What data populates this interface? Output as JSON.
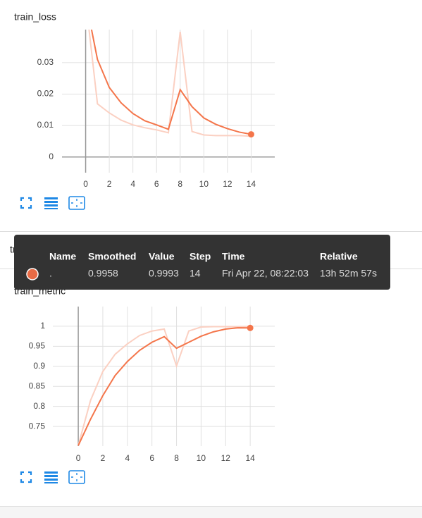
{
  "section_header": "train_metric",
  "chart_data": [
    {
      "type": "line",
      "title": "train_loss",
      "x": [
        0,
        1,
        2,
        3,
        4,
        5,
        6,
        7,
        8,
        9,
        10,
        11,
        12,
        13,
        14
      ],
      "series": [
        {
          "color": "#fbd0c2",
          "values": [
            0.05,
            0.0169,
            0.014,
            0.0117,
            0.0102,
            0.0093,
            0.0086,
            0.0077,
            0.0398,
            0.0081,
            0.007,
            0.0068,
            0.0068,
            0.0068,
            0.0066
          ]
        },
        {
          "color": "#f4754a",
          "values": [
            0.05,
            0.031,
            0.0221,
            0.0172,
            0.0138,
            0.0115,
            0.0102,
            0.0088,
            0.0214,
            0.016,
            0.0124,
            0.0104,
            0.009,
            0.0079,
            0.0072
          ]
        }
      ],
      "xlim": [
        -2,
        16
      ],
      "xticks": [
        0,
        2,
        4,
        6,
        8,
        10,
        12,
        14
      ],
      "ylim": [
        -0.005,
        0.0405
      ],
      "yticks": [
        0,
        0.01,
        0.02,
        0.03
      ],
      "grid": true
    },
    {
      "type": "line",
      "title": "train_metric",
      "x": [
        0,
        1,
        2,
        3,
        4,
        5,
        6,
        7,
        8,
        9,
        10,
        11,
        12,
        13,
        14
      ],
      "series": [
        {
          "color": "#fbd0c2",
          "values": [
            0.7025,
            0.815,
            0.887,
            0.93,
            0.956,
            0.977,
            0.988,
            0.993,
            0.901,
            0.988,
            0.998,
            0.999,
            0.999,
            0.999,
            0.9993
          ]
        },
        {
          "color": "#f4754a",
          "values": [
            0.7025,
            0.768,
            0.827,
            0.877,
            0.912,
            0.94,
            0.96,
            0.974,
            0.945,
            0.96,
            0.975,
            0.986,
            0.993,
            0.996,
            0.9958
          ]
        }
      ],
      "xlim": [
        -2.07,
        16
      ],
      "xticks": [
        0,
        2,
        4,
        6,
        8,
        10,
        12,
        14
      ],
      "ylim": [
        0.701,
        1.049
      ],
      "yticks": [
        0.75,
        0.8,
        0.85,
        0.9,
        0.95,
        1
      ],
      "grid": true
    }
  ],
  "tooltip": {
    "headers": [
      "Name",
      "Smoothed",
      "Value",
      "Step",
      "Time",
      "Relative"
    ],
    "row": [
      ".",
      "0.9958",
      "0.9993",
      "14",
      "Fri Apr 22, 08:22:03",
      "13h 52m 57s"
    ]
  }
}
